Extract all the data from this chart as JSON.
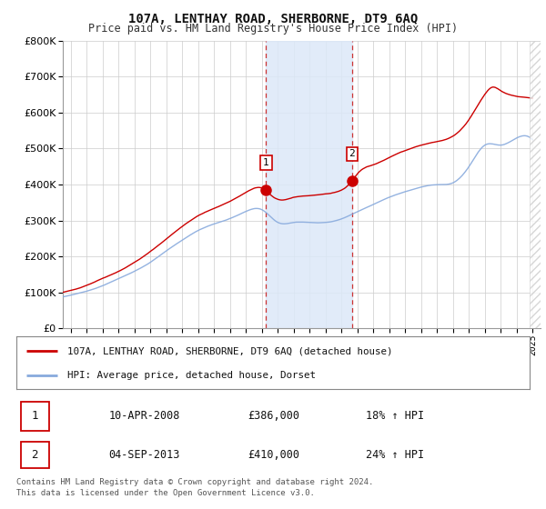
{
  "title": "107A, LENTHAY ROAD, SHERBORNE, DT9 6AQ",
  "subtitle": "Price paid vs. HM Land Registry's House Price Index (HPI)",
  "ylim": [
    0,
    800000
  ],
  "xlim_start": 1995.5,
  "xlim_end": 2025.5,
  "sale1_year": 2008.27,
  "sale1_price": 386000,
  "sale1_label": "1",
  "sale2_year": 2013.67,
  "sale2_price": 410000,
  "sale2_label": "2",
  "shade_x1": 2008.27,
  "shade_x2": 2013.67,
  "property_color": "#cc0000",
  "hpi_color": "#88aadd",
  "legend_property": "107A, LENTHAY ROAD, SHERBORNE, DT9 6AQ (detached house)",
  "legend_hpi": "HPI: Average price, detached house, Dorset",
  "table_row1_num": "1",
  "table_row1_date": "10-APR-2008",
  "table_row1_price": "£386,000",
  "table_row1_hpi": "18% ↑ HPI",
  "table_row2_num": "2",
  "table_row2_date": "04-SEP-2013",
  "table_row2_price": "£410,000",
  "table_row2_hpi": "24% ↑ HPI",
  "footer": "Contains HM Land Registry data © Crown copyright and database right 2024.\nThis data is licensed under the Open Government Licence v3.0.",
  "background_color": "#ffffff",
  "grid_color": "#cccccc"
}
